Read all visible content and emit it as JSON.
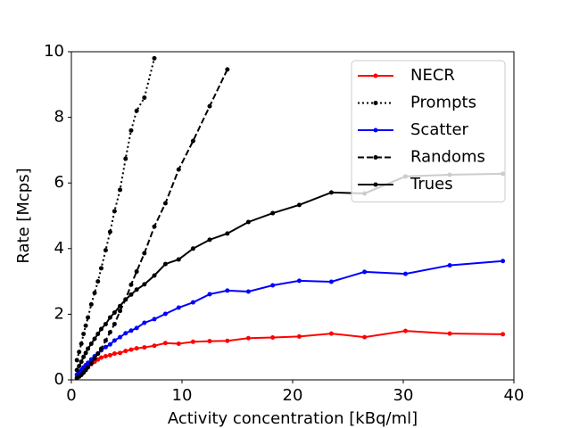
{
  "chart_data": {
    "type": "line",
    "x_label": "Activity concentration [kBq/ml]",
    "y_label": "Rate [Mcps]",
    "x": [
      0.5,
      0.7,
      0.9,
      1.1,
      1.3,
      1.5,
      1.8,
      2.1,
      2.4,
      2.7,
      3.1,
      3.5,
      3.9,
      4.4,
      4.9,
      5.4,
      5.9,
      6.6,
      7.5,
      8.5,
      9.7,
      11.0,
      12.5,
      14.1,
      16.0,
      18.2,
      20.6,
      23.5,
      26.5,
      30.2,
      34.2,
      39.0
    ],
    "series": [
      {
        "name": "NECR",
        "color": "#ff0000",
        "linestyle": "solid",
        "values": [
          0.07,
          0.13,
          0.2,
          0.28,
          0.34,
          0.4,
          0.48,
          0.55,
          0.62,
          0.68,
          0.72,
          0.75,
          0.8,
          0.82,
          0.88,
          0.92,
          0.96,
          0.99,
          1.04,
          1.12,
          1.1,
          1.16,
          1.18,
          1.19,
          1.27,
          1.29,
          1.32,
          1.41,
          1.3,
          1.49,
          1.41,
          1.39
        ]
      },
      {
        "name": "Prompts",
        "color": "#000000",
        "linestyle": "dotted",
        "values": [
          0.6,
          0.85,
          1.1,
          1.4,
          1.65,
          1.9,
          2.3,
          2.65,
          3.0,
          3.4,
          3.95,
          4.51,
          5.14,
          5.79,
          6.74,
          7.6,
          8.2,
          8.6,
          9.8,
          null,
          null,
          null,
          null,
          null,
          null,
          null,
          null,
          null,
          null,
          null,
          null,
          null
        ]
      },
      {
        "name": "Scatter",
        "color": "#0000ff",
        "linestyle": "solid",
        "values": [
          0.16,
          0.22,
          0.3,
          0.38,
          0.45,
          0.52,
          0.62,
          0.72,
          0.8,
          0.9,
          1.0,
          1.08,
          1.2,
          1.3,
          1.42,
          1.5,
          1.58,
          1.74,
          1.85,
          2.01,
          2.2,
          2.36,
          2.61,
          2.72,
          2.69,
          2.88,
          3.02,
          2.99,
          3.29,
          3.23,
          3.49,
          3.62
        ]
      },
      {
        "name": "Randoms",
        "color": "#000000",
        "linestyle": "dashed",
        "values": [
          0.05,
          0.1,
          0.15,
          0.22,
          0.3,
          0.38,
          0.5,
          0.65,
          0.8,
          0.95,
          1.2,
          1.45,
          1.7,
          2.1,
          2.45,
          2.9,
          3.3,
          3.86,
          4.67,
          5.38,
          6.41,
          7.28,
          8.34,
          9.46,
          null,
          null,
          null,
          null,
          null,
          null,
          null,
          null
        ]
      },
      {
        "name": "Trues",
        "color": "#000000",
        "linestyle": "solid",
        "values": [
          0.3,
          0.42,
          0.55,
          0.7,
          0.82,
          0.95,
          1.1,
          1.25,
          1.4,
          1.55,
          1.7,
          1.9,
          2.05,
          2.25,
          2.45,
          2.6,
          2.75,
          2.91,
          3.18,
          3.53,
          3.67,
          4.0,
          4.27,
          4.46,
          4.81,
          5.08,
          5.33,
          5.71,
          5.68,
          6.2,
          6.25,
          6.28
        ]
      }
    ],
    "xlim": [
      0,
      40
    ],
    "ylim": [
      0,
      10
    ],
    "xticks": [
      0,
      10,
      20,
      30,
      40
    ],
    "yticks": [
      0,
      2,
      4,
      6,
      8,
      10
    ],
    "grid": false,
    "legend": "upper right"
  }
}
